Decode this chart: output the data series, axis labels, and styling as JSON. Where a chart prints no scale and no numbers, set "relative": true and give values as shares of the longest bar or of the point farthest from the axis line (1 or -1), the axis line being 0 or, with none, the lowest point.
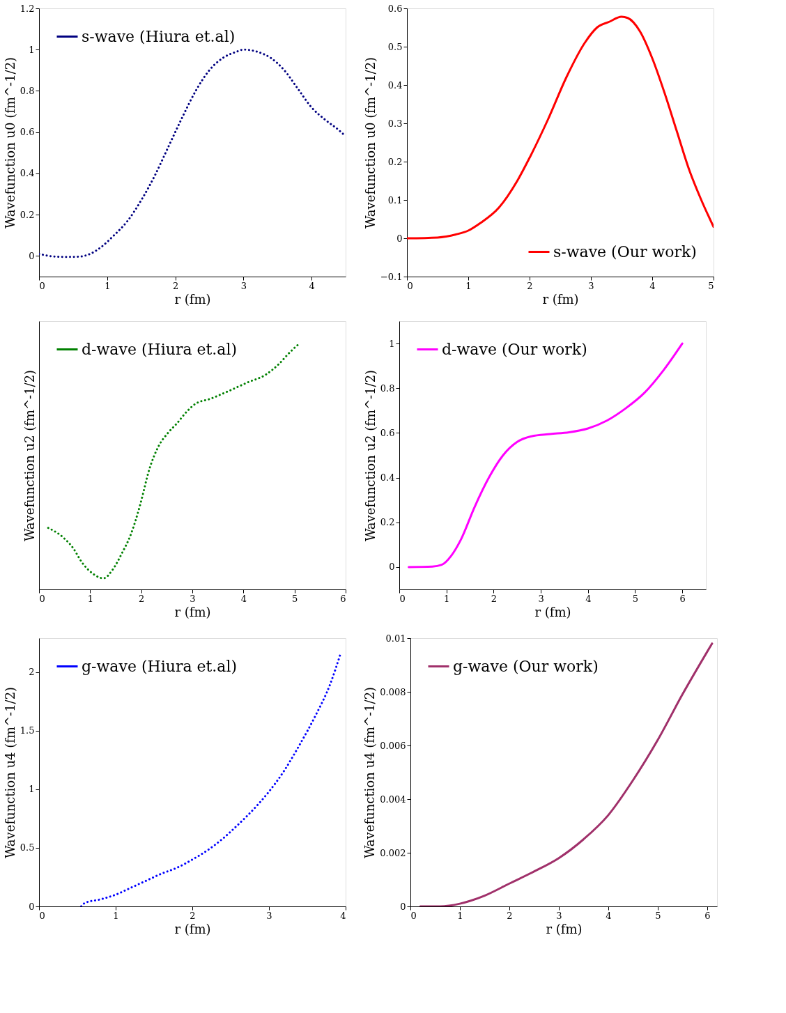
{
  "chart_data": [
    {
      "type": "line",
      "xlabel": "r (fm)",
      "ylabel": "Wavefunction u0 (fm^-1/2)",
      "xlim": [
        0,
        4.5
      ],
      "xticks": [
        0,
        1,
        2,
        3,
        4
      ],
      "ylim": [
        -0.1,
        1.2
      ],
      "yticks": [
        0,
        0.2,
        0.4,
        0.6,
        0.8,
        1,
        1.2
      ],
      "grid": false,
      "legend": "top left",
      "line_style": "dotted",
      "x": [
        0,
        0.2,
        0.4,
        0.6,
        0.75,
        0.9,
        1.1,
        1.3,
        1.5,
        1.7,
        1.9,
        2.1,
        2.3,
        2.5,
        2.7,
        2.9,
        3.0,
        3.2,
        3.4,
        3.6,
        3.8,
        4.0,
        4.2,
        4.4,
        4.5
      ],
      "series": [
        {
          "name": "s-wave (Hiura et.al)",
          "color": "#000080",
          "values": [
            0.01,
            -0.002,
            -0.005,
            -0.003,
            0.01,
            0.04,
            0.1,
            0.17,
            0.27,
            0.39,
            0.53,
            0.67,
            0.8,
            0.9,
            0.96,
            0.99,
            1.0,
            0.99,
            0.96,
            0.9,
            0.81,
            0.72,
            0.66,
            0.61,
            0.58
          ]
        }
      ]
    },
    {
      "type": "line",
      "xlabel": "r (fm)",
      "ylabel": "Wavefunction u0 (fm^-1/2)",
      "xlim": [
        0,
        5
      ],
      "xticks": [
        0,
        1,
        2,
        3,
        4,
        5
      ],
      "ylim": [
        -0.1,
        0.6
      ],
      "yticks": [
        {
          "value": -0.1,
          "label": "−0.1"
        },
        0,
        0.1,
        0.2,
        0.3,
        0.4,
        0.5,
        0.6
      ],
      "grid": false,
      "legend": "bottom right",
      "line_style": "solid",
      "x": [
        0,
        0.5,
        0.8,
        1,
        1.2,
        1.5,
        1.8,
        2,
        2.3,
        2.6,
        2.9,
        3.1,
        3.3,
        3.5,
        3.6,
        3.8,
        4,
        4.2,
        4.4,
        4.6,
        4.8,
        5
      ],
      "series": [
        {
          "name": "s-wave (Our work)",
          "color": "#ff0000",
          "values": [
            0,
            0.002,
            0.01,
            0.02,
            0.04,
            0.08,
            0.15,
            0.21,
            0.31,
            0.42,
            0.51,
            0.55,
            0.565,
            0.578,
            0.575,
            0.54,
            0.47,
            0.38,
            0.28,
            0.18,
            0.1,
            0.03
          ]
        }
      ]
    },
    {
      "type": "line",
      "relative": true,
      "tick_labels": "x",
      "xlabel": "r (fm)",
      "ylabel": "Wavefunction u2 (fm^-1/2)",
      "xlim": [
        0,
        6
      ],
      "xticks": [
        0,
        1,
        2,
        3,
        4,
        5,
        6
      ],
      "grid": false,
      "legend": "top left",
      "line_style": "dotted",
      "x": [
        0.18,
        0.48,
        0.66,
        0.84,
        1.08,
        1.26,
        1.44,
        1.62,
        1.8,
        1.98,
        2.16,
        2.34,
        2.52,
        2.7,
        2.88,
        3.06,
        3.36,
        3.72,
        4.08,
        4.44,
        4.68,
        4.92,
        5.1
      ],
      "series": [
        {
          "name": "d-wave (Hiura et.al)",
          "color": "#008000",
          "values": [
            0.25,
            0.21,
            0.17,
            0.11,
            0.06,
            0.045,
            0.08,
            0.146,
            0.225,
            0.344,
            0.489,
            0.582,
            0.635,
            0.675,
            0.72,
            0.754,
            0.775,
            0.807,
            0.841,
            0.873,
            0.913,
            0.966,
            1.0
          ]
        }
      ]
    },
    {
      "type": "line",
      "xlabel": "r (fm)",
      "ylabel": "Wavefunction u2 (fm^-1/2)",
      "xlim": [
        0,
        6.5
      ],
      "xticks": [
        0,
        1,
        2,
        3,
        4,
        5,
        6
      ],
      "ylim": [
        -0.1,
        1.1
      ],
      "yticks": [
        0,
        0.2,
        0.4,
        0.6,
        0.8,
        1
      ],
      "grid": false,
      "legend": "top left",
      "line_style": "solid",
      "x": [
        0.2,
        0.7,
        0.9,
        1.1,
        1.3,
        1.6,
        1.9,
        2.2,
        2.5,
        2.8,
        3.2,
        3.6,
        4,
        4.4,
        4.8,
        5.2,
        5.6,
        6
      ],
      "series": [
        {
          "name": "d-wave (Our work)",
          "color": "#ff00ff",
          "values": [
            0,
            0.002,
            0.01,
            0.05,
            0.12,
            0.27,
            0.4,
            0.5,
            0.56,
            0.585,
            0.595,
            0.603,
            0.62,
            0.655,
            0.71,
            0.78,
            0.88,
            1.0
          ]
        }
      ]
    },
    {
      "type": "line",
      "xlabel": "r (fm)",
      "ylabel": "Wavefunction u4 (fm^-1/2)",
      "xlim": [
        0,
        4
      ],
      "xticks": [
        0,
        1,
        2,
        3,
        4
      ],
      "ylim": [
        0,
        2.29
      ],
      "yticks": [
        0,
        0.5,
        1,
        1.5,
        2
      ],
      "grid": false,
      "legend": "top left",
      "line_style": "dotted",
      "x": [
        0.55,
        0.6,
        0.8,
        1,
        1.2,
        1.4,
        1.6,
        1.8,
        2,
        2.2,
        2.4,
        2.6,
        2.8,
        3,
        3.2,
        3.4,
        3.6,
        3.8,
        3.93
      ],
      "series": [
        {
          "name": "g-wave (Hiura et.al)",
          "color": "#0000ff",
          "values": [
            0,
            0.03,
            0.06,
            0.1,
            0.16,
            0.22,
            0.28,
            0.33,
            0.4,
            0.48,
            0.58,
            0.7,
            0.83,
            0.98,
            1.16,
            1.38,
            1.62,
            1.9,
            2.15
          ]
        }
      ]
    },
    {
      "type": "line",
      "xlabel": "r (fm)",
      "ylabel": "Wavefunction u4 (fm^-1/2)",
      "xlim": [
        0,
        6.2
      ],
      "xticks": [
        0,
        1,
        2,
        3,
        4,
        5,
        6
      ],
      "ylim": [
        0,
        0.01
      ],
      "yticks": [
        0,
        0.002,
        0.004,
        0.006,
        0.008,
        0.01
      ],
      "grid": false,
      "legend": "top left",
      "line_style": "solid",
      "x": [
        0.2,
        0.6,
        1,
        1.2,
        1.5,
        2,
        2.5,
        3,
        3.5,
        4,
        4.5,
        5,
        5.5,
        6.1
      ],
      "series": [
        {
          "name": "g-wave (Our work)",
          "color": "#a0306a",
          "values": [
            0,
            0,
            0.0001,
            0.0002,
            0.0004,
            0.00085,
            0.0013,
            0.0018,
            0.0025,
            0.0034,
            0.0047,
            0.0062,
            0.0079,
            0.0098
          ]
        }
      ]
    }
  ]
}
